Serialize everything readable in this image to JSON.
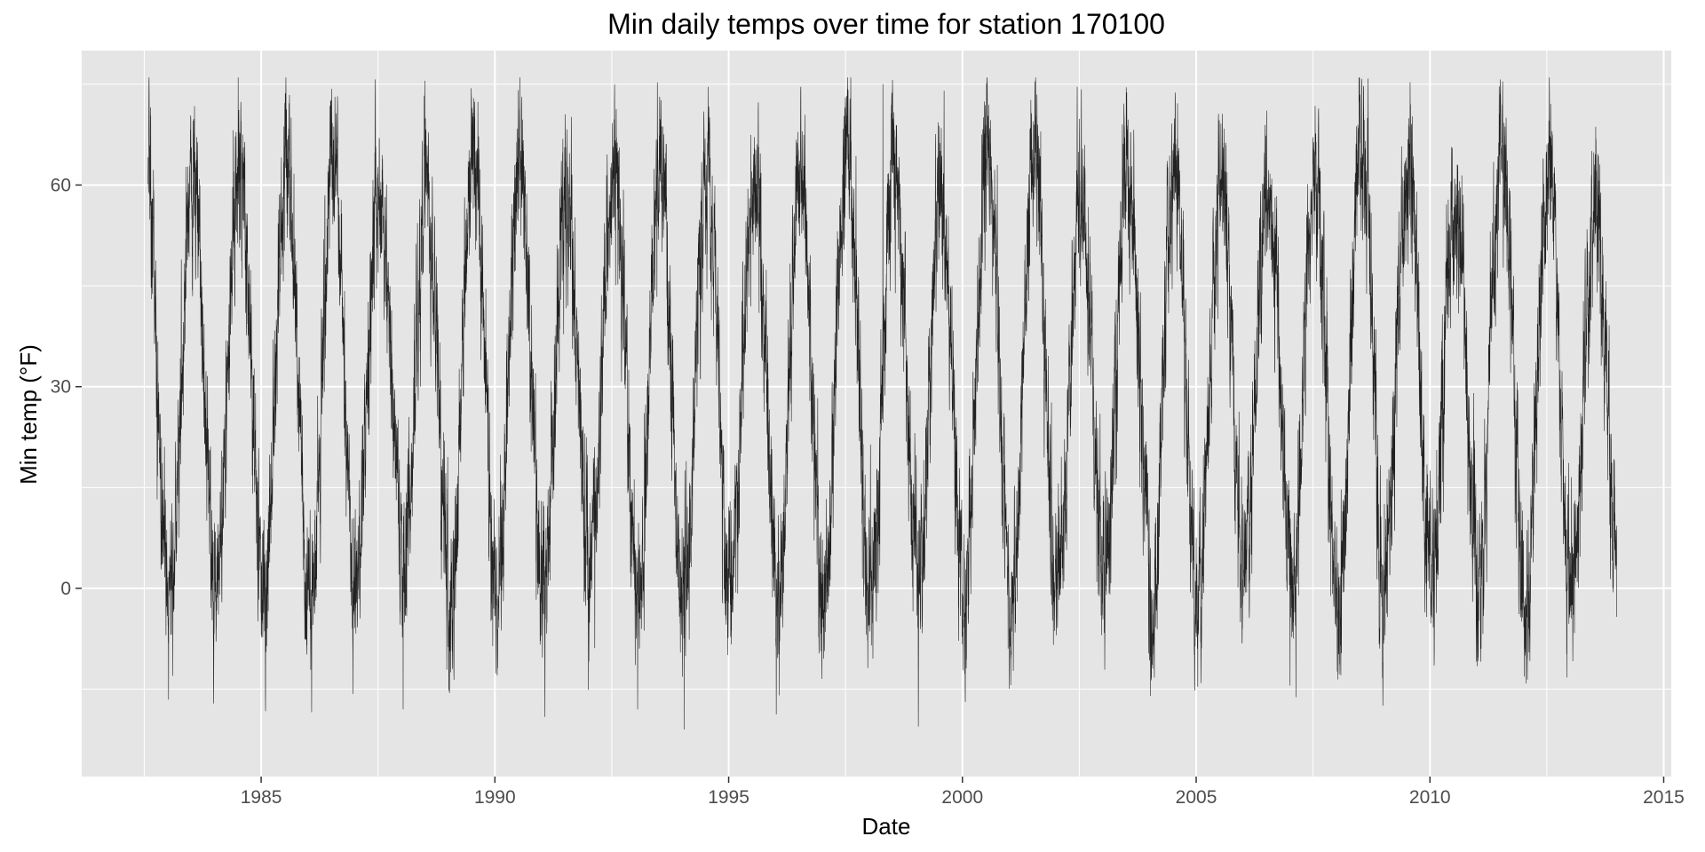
{
  "chart_data": {
    "type": "line",
    "title": "Min daily temps over time for station 170100",
    "xlabel": "Date",
    "ylabel": "Min temp (°F)",
    "xlim": [
      "1981-03-01",
      "2015-03-01"
    ],
    "ylim": [
      -28,
      80
    ],
    "x_ticks": [
      1985,
      1990,
      1995,
      2000,
      2005,
      2010,
      2015
    ],
    "y_ticks": [
      0,
      30,
      60
    ],
    "grid": true,
    "legend": "none",
    "colors": {
      "panel": "#e5e5e5",
      "grid_major": "#ffffff",
      "line": "#000000",
      "tick_text": "#4d4d4d"
    },
    "series": [
      {
        "x_start": "1982-08-01",
        "x_end": "2013-12-31",
        "x_step": "1 day",
        "approx_range": [
          -21,
          76
        ],
        "seasonal_pattern": "annual cycle, peaks mid-summer near 60–70 °F, troughs mid-winter near -10–5 °F",
        "notable_points": [
          {
            "x": "1984-07-05",
            "y": 76
          },
          {
            "x": "1998-04-20",
            "y": 75
          },
          {
            "x": "1988-01-15",
            "y": -18
          },
          {
            "x": "1993-01-20",
            "y": -18
          },
          {
            "x": "1994-01-20",
            "y": -21
          },
          {
            "x": "2004-01-10",
            "y": -16
          }
        ]
      }
    ]
  }
}
